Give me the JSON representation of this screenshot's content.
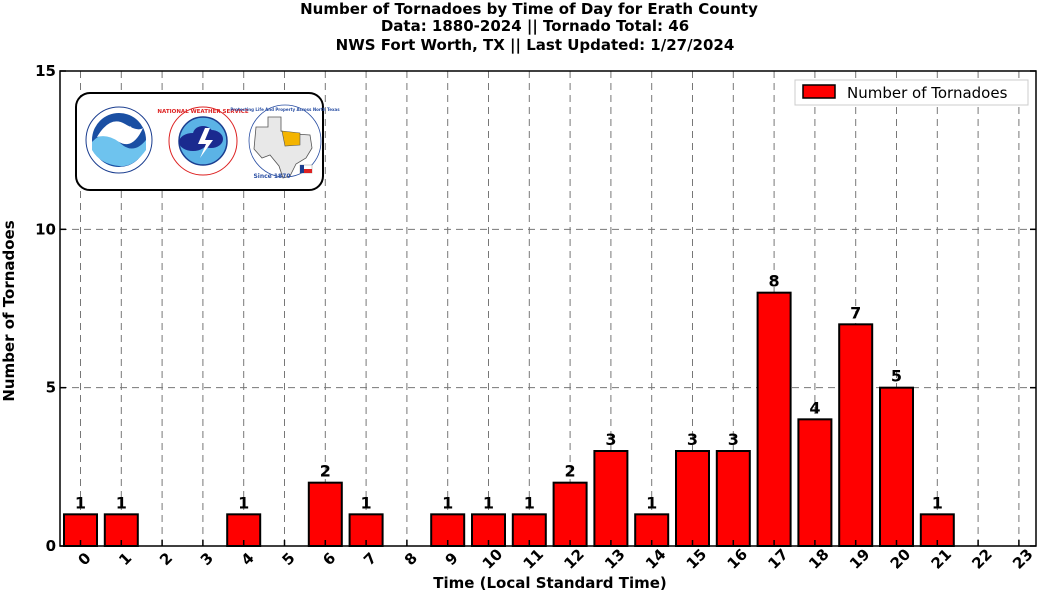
{
  "chart_data": {
    "type": "bar",
    "title_lines": [
      "Number of Tornadoes by Time of Day for Erath County",
      "Data: 1880-2024 || Tornado Total: 46",
      "NWS Fort Worth, TX || Last Updated: 1/27/2024"
    ],
    "xlabel": "Time (Local Standard Time)",
    "ylabel": "Number of Tornadoes",
    "categories": [
      "0",
      "1",
      "2",
      "3",
      "4",
      "5",
      "6",
      "7",
      "8",
      "9",
      "10",
      "11",
      "12",
      "13",
      "14",
      "15",
      "16",
      "17",
      "18",
      "19",
      "20",
      "21",
      "22",
      "23"
    ],
    "series": [
      {
        "name": "Number of Tornadoes",
        "color": "#ff0000",
        "values": [
          1,
          1,
          0,
          0,
          1,
          0,
          2,
          1,
          0,
          1,
          1,
          1,
          2,
          3,
          1,
          3,
          3,
          8,
          4,
          7,
          5,
          1,
          0,
          0
        ]
      }
    ],
    "ylim": [
      0,
      15
    ],
    "yticks": [
      "0",
      "5",
      "10",
      "15"
    ],
    "grid": true,
    "legend_position": "top-right",
    "logos": {
      "noaa": "NOAA",
      "nws": "NATIONAL WEATHER SERVICE",
      "wfo": "Protecting Life And Property Across North Texas",
      "since": "Since 1870"
    }
  }
}
